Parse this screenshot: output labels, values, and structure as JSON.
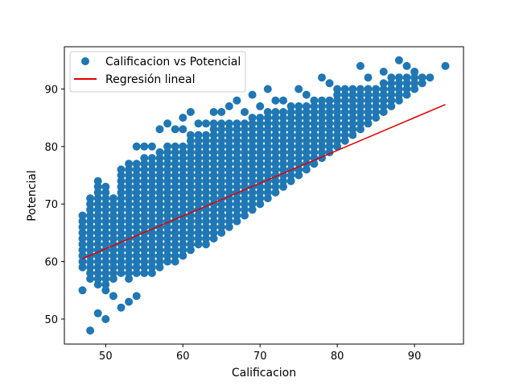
{
  "chart_data": {
    "type": "scatter",
    "title": "",
    "xlabel": "Calificacion",
    "ylabel": "Potencial",
    "xlim": [
      44.65,
      96.35
    ],
    "ylim": [
      45.65,
      97.35
    ],
    "xticks": [
      50,
      60,
      70,
      80,
      90
    ],
    "yticks": [
      50,
      60,
      70,
      80,
      90
    ],
    "grid": false,
    "legend_position": "top-left",
    "colors": {
      "scatter": "#1f77b4",
      "regression": "#e00000",
      "axes": "#000000"
    },
    "scatter_series": {
      "name": "Calificacion vs Potencial",
      "points": [
        [
          47,
          55
        ],
        [
          47,
          59
        ],
        [
          48,
          48
        ],
        [
          49,
          51
        ],
        [
          50,
          50
        ],
        [
          51,
          54
        ],
        [
          52,
          52
        ],
        [
          53,
          53
        ],
        [
          54,
          54
        ],
        [
          53,
          77
        ],
        [
          54,
          80
        ],
        [
          55,
          80
        ],
        [
          56,
          80
        ],
        [
          57,
          83
        ],
        [
          58,
          84
        ],
        [
          59,
          83
        ],
        [
          60,
          83
        ],
        [
          60,
          85
        ],
        [
          61,
          86
        ],
        [
          62,
          84
        ],
        [
          63,
          84
        ],
        [
          64,
          86
        ],
        [
          65,
          86
        ],
        [
          66,
          87
        ],
        [
          67,
          88
        ],
        [
          68,
          86
        ],
        [
          69,
          89
        ],
        [
          70,
          87
        ],
        [
          71,
          90
        ],
        [
          72,
          88
        ],
        [
          73,
          88
        ],
        [
          74,
          87
        ],
        [
          75,
          90
        ],
        [
          76,
          89
        ],
        [
          77,
          88
        ],
        [
          78,
          92
        ],
        [
          79,
          91
        ],
        [
          80,
          90
        ],
        [
          81,
          90
        ],
        [
          82,
          90
        ],
        [
          83,
          94
        ],
        [
          84,
          92
        ],
        [
          85,
          90
        ],
        [
          86,
          93
        ],
        [
          87,
          92
        ],
        [
          88,
          95
        ],
        [
          89,
          94
        ],
        [
          90,
          93
        ],
        [
          91,
          92
        ],
        [
          92,
          92
        ],
        [
          94,
          94
        ]
      ],
      "bands": [
        [
          47,
          59,
          68
        ],
        [
          48,
          57,
          71
        ],
        [
          49,
          56,
          74
        ],
        [
          50,
          55,
          73
        ],
        [
          51,
          57,
          71
        ],
        [
          52,
          58,
          76
        ],
        [
          53,
          57,
          76
        ],
        [
          54,
          58,
          77
        ],
        [
          55,
          58,
          78
        ],
        [
          56,
          58,
          78
        ],
        [
          57,
          59,
          79
        ],
        [
          58,
          60,
          80
        ],
        [
          59,
          60,
          80
        ],
        [
          60,
          61,
          80
        ],
        [
          61,
          62,
          82
        ],
        [
          62,
          63,
          82
        ],
        [
          63,
          63,
          82
        ],
        [
          64,
          64,
          84
        ],
        [
          65,
          65,
          84
        ],
        [
          66,
          66,
          84
        ],
        [
          67,
          67,
          84
        ],
        [
          68,
          68,
          84
        ],
        [
          69,
          69,
          85
        ],
        [
          70,
          70,
          85
        ],
        [
          71,
          71,
          86
        ],
        [
          72,
          72,
          86
        ],
        [
          73,
          73,
          86
        ],
        [
          74,
          74,
          86
        ],
        [
          75,
          75,
          87
        ],
        [
          76,
          76,
          87
        ],
        [
          77,
          77,
          88
        ],
        [
          78,
          78,
          88
        ],
        [
          79,
          79,
          88
        ],
        [
          80,
          80,
          89
        ],
        [
          81,
          81,
          89
        ],
        [
          82,
          82,
          89
        ],
        [
          83,
          83,
          90
        ],
        [
          84,
          84,
          90
        ],
        [
          85,
          85,
          90
        ],
        [
          86,
          86,
          91
        ],
        [
          87,
          87,
          91
        ],
        [
          88,
          88,
          92
        ],
        [
          89,
          89,
          92
        ],
        [
          90,
          90,
          92
        ],
        [
          91,
          91,
          92
        ]
      ]
    },
    "regression_series": {
      "name": "Regresión lineal",
      "x": [
        47,
        94
      ],
      "y": [
        60.5,
        87.3
      ]
    }
  }
}
